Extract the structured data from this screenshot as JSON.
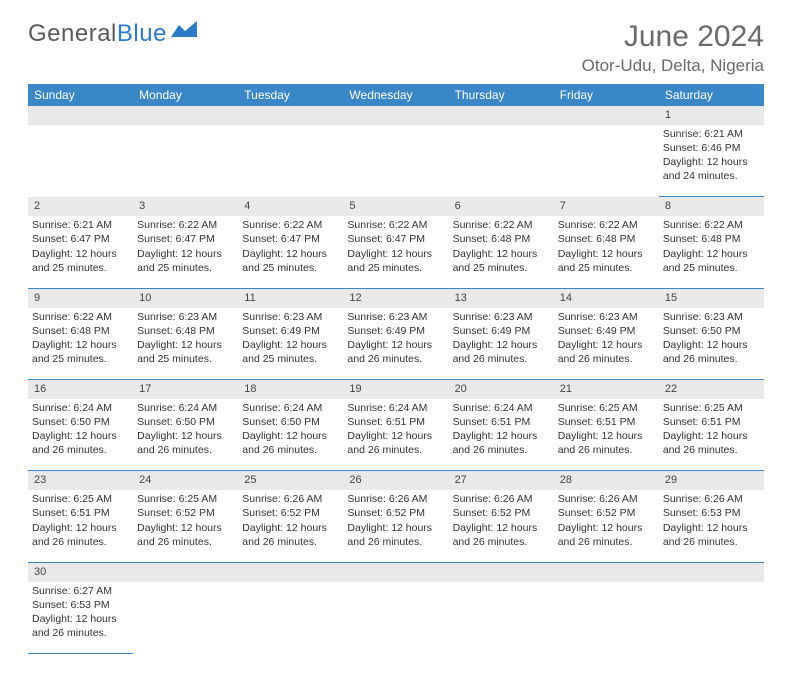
{
  "brand": {
    "part1": "General",
    "part2": "Blue"
  },
  "title": {
    "month": "June 2024",
    "location": "Otor-Udu, Delta, Nigeria"
  },
  "dayHeaders": [
    "Sunday",
    "Monday",
    "Tuesday",
    "Wednesday",
    "Thursday",
    "Friday",
    "Saturday"
  ],
  "colors": {
    "headerBg": "#3a87c7",
    "rowStripe": "#e9e9e9",
    "border": "#3a87c7",
    "textMuted": "#6a6a6a"
  },
  "startOffset": 6,
  "days": [
    {
      "n": 1,
      "sr": "6:21 AM",
      "ss": "6:46 PM",
      "dl": "12 hours and 24 minutes."
    },
    {
      "n": 2,
      "sr": "6:21 AM",
      "ss": "6:47 PM",
      "dl": "12 hours and 25 minutes."
    },
    {
      "n": 3,
      "sr": "6:22 AM",
      "ss": "6:47 PM",
      "dl": "12 hours and 25 minutes."
    },
    {
      "n": 4,
      "sr": "6:22 AM",
      "ss": "6:47 PM",
      "dl": "12 hours and 25 minutes."
    },
    {
      "n": 5,
      "sr": "6:22 AM",
      "ss": "6:47 PM",
      "dl": "12 hours and 25 minutes."
    },
    {
      "n": 6,
      "sr": "6:22 AM",
      "ss": "6:48 PM",
      "dl": "12 hours and 25 minutes."
    },
    {
      "n": 7,
      "sr": "6:22 AM",
      "ss": "6:48 PM",
      "dl": "12 hours and 25 minutes."
    },
    {
      "n": 8,
      "sr": "6:22 AM",
      "ss": "6:48 PM",
      "dl": "12 hours and 25 minutes."
    },
    {
      "n": 9,
      "sr": "6:22 AM",
      "ss": "6:48 PM",
      "dl": "12 hours and 25 minutes."
    },
    {
      "n": 10,
      "sr": "6:23 AM",
      "ss": "6:48 PM",
      "dl": "12 hours and 25 minutes."
    },
    {
      "n": 11,
      "sr": "6:23 AM",
      "ss": "6:49 PM",
      "dl": "12 hours and 25 minutes."
    },
    {
      "n": 12,
      "sr": "6:23 AM",
      "ss": "6:49 PM",
      "dl": "12 hours and 26 minutes."
    },
    {
      "n": 13,
      "sr": "6:23 AM",
      "ss": "6:49 PM",
      "dl": "12 hours and 26 minutes."
    },
    {
      "n": 14,
      "sr": "6:23 AM",
      "ss": "6:49 PM",
      "dl": "12 hours and 26 minutes."
    },
    {
      "n": 15,
      "sr": "6:23 AM",
      "ss": "6:50 PM",
      "dl": "12 hours and 26 minutes."
    },
    {
      "n": 16,
      "sr": "6:24 AM",
      "ss": "6:50 PM",
      "dl": "12 hours and 26 minutes."
    },
    {
      "n": 17,
      "sr": "6:24 AM",
      "ss": "6:50 PM",
      "dl": "12 hours and 26 minutes."
    },
    {
      "n": 18,
      "sr": "6:24 AM",
      "ss": "6:50 PM",
      "dl": "12 hours and 26 minutes."
    },
    {
      "n": 19,
      "sr": "6:24 AM",
      "ss": "6:51 PM",
      "dl": "12 hours and 26 minutes."
    },
    {
      "n": 20,
      "sr": "6:24 AM",
      "ss": "6:51 PM",
      "dl": "12 hours and 26 minutes."
    },
    {
      "n": 21,
      "sr": "6:25 AM",
      "ss": "6:51 PM",
      "dl": "12 hours and 26 minutes."
    },
    {
      "n": 22,
      "sr": "6:25 AM",
      "ss": "6:51 PM",
      "dl": "12 hours and 26 minutes."
    },
    {
      "n": 23,
      "sr": "6:25 AM",
      "ss": "6:51 PM",
      "dl": "12 hours and 26 minutes."
    },
    {
      "n": 24,
      "sr": "6:25 AM",
      "ss": "6:52 PM",
      "dl": "12 hours and 26 minutes."
    },
    {
      "n": 25,
      "sr": "6:26 AM",
      "ss": "6:52 PM",
      "dl": "12 hours and 26 minutes."
    },
    {
      "n": 26,
      "sr": "6:26 AM",
      "ss": "6:52 PM",
      "dl": "12 hours and 26 minutes."
    },
    {
      "n": 27,
      "sr": "6:26 AM",
      "ss": "6:52 PM",
      "dl": "12 hours and 26 minutes."
    },
    {
      "n": 28,
      "sr": "6:26 AM",
      "ss": "6:52 PM",
      "dl": "12 hours and 26 minutes."
    },
    {
      "n": 29,
      "sr": "6:26 AM",
      "ss": "6:53 PM",
      "dl": "12 hours and 26 minutes."
    },
    {
      "n": 30,
      "sr": "6:27 AM",
      "ss": "6:53 PM",
      "dl": "12 hours and 26 minutes."
    }
  ],
  "labels": {
    "sunrise": "Sunrise:",
    "sunset": "Sunset:",
    "daylight": "Daylight:"
  }
}
